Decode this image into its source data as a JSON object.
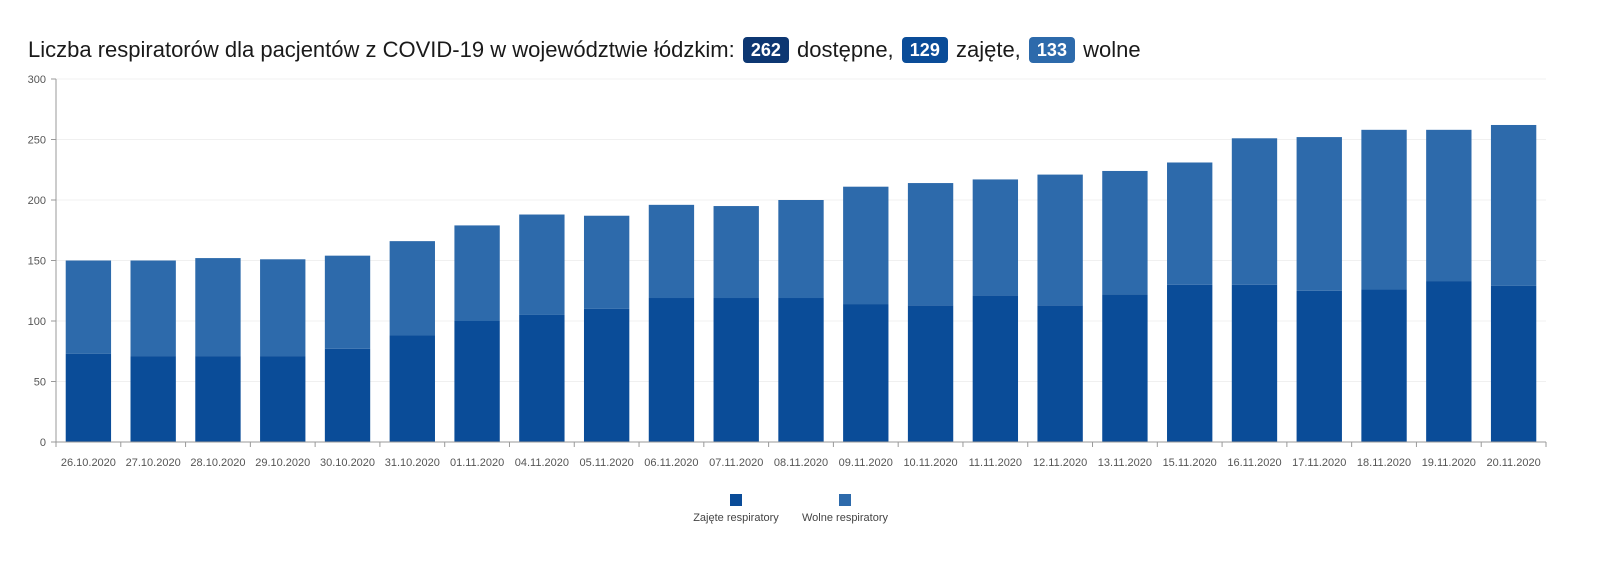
{
  "title": {
    "prefix": "Liczba respiratorów dla pacjentów z COVID-19 w województwie łódzkim:",
    "total_value": "262",
    "total_label": "dostępne,",
    "occupied_value": "129",
    "occupied_label": "zajęte,",
    "free_value": "133",
    "free_label": "wolne"
  },
  "colors": {
    "occupied": "#0a4c98",
    "free": "#2d6aab",
    "axis": "#999999",
    "grid": "#f0f0f0",
    "badge_total": "#0d3772"
  },
  "chart_data": {
    "type": "bar",
    "stacked": true,
    "categories": [
      "26.10.2020",
      "27.10.2020",
      "28.10.2020",
      "29.10.2020",
      "30.10.2020",
      "31.10.2020",
      "01.11.2020",
      "04.11.2020",
      "05.11.2020",
      "06.11.2020",
      "07.11.2020",
      "08.11.2020",
      "09.11.2020",
      "10.11.2020",
      "11.11.2020",
      "12.11.2020",
      "13.11.2020",
      "15.11.2020",
      "16.11.2020",
      "17.11.2020",
      "18.11.2020",
      "19.11.2020",
      "20.11.2020"
    ],
    "series": [
      {
        "name": "Zajęte respiratory",
        "color": "#0a4c98",
        "values": [
          73,
          71,
          71,
          71,
          77,
          88,
          100,
          105,
          110,
          119,
          119,
          119,
          114,
          113,
          121,
          113,
          122,
          130,
          130,
          125,
          126,
          133,
          129
        ]
      },
      {
        "name": "Wolne respiratory",
        "color": "#2d6aab",
        "values": [
          77,
          79,
          81,
          80,
          77,
          78,
          79,
          83,
          77,
          77,
          76,
          81,
          97,
          101,
          96,
          108,
          102,
          101,
          121,
          127,
          132,
          125,
          133
        ]
      }
    ],
    "y_ticks": [
      0,
      50,
      100,
      150,
      200,
      250,
      300
    ],
    "ylim": [
      0,
      300
    ],
    "grid": true,
    "legend_position": "bottom-center"
  }
}
